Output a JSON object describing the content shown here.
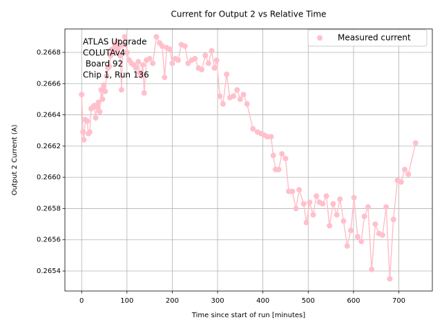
{
  "chart_data": {
    "type": "line",
    "title": "Current for Output 2 vs Relative Time",
    "xlabel": "Time since start of run [minutes]",
    "ylabel": "Output 2 Current (A)",
    "annotation": [
      "ATLAS Upgrade",
      "COLUTAv4",
      " Board 92",
      "Chip 1, Run 136"
    ],
    "legend": "upper right",
    "grid": true,
    "marker": "o",
    "x": [
      0,
      3,
      5,
      8,
      12,
      15,
      18,
      21,
      25,
      28,
      31,
      34,
      37,
      40,
      43,
      46,
      49,
      52,
      55,
      58,
      61,
      64,
      67,
      70,
      73,
      76,
      79,
      82,
      85,
      88,
      91,
      95,
      100,
      105,
      110,
      115,
      120,
      125,
      128,
      131,
      135,
      138,
      143,
      150,
      157,
      165,
      172,
      178,
      183,
      188,
      195,
      200,
      207,
      213,
      220,
      228,
      235,
      243,
      250,
      258,
      265,
      273,
      280,
      287,
      293,
      298,
      305,
      312,
      320,
      327,
      335,
      343,
      350,
      357,
      365,
      378,
      388,
      396,
      403,
      410,
      418,
      423,
      428,
      435,
      442,
      450,
      457,
      465,
      473,
      480,
      490,
      496,
      503,
      511,
      518,
      525,
      532,
      540,
      547,
      555,
      563,
      570,
      578,
      586,
      594,
      601,
      609,
      617,
      624,
      632,
      640,
      648,
      656,
      664,
      672,
      680,
      688,
      697,
      705,
      713,
      721,
      737
    ],
    "series": [
      {
        "name": "Measured current",
        "color": "#ffc0cb",
        "values": [
          0.26653,
          0.26629,
          0.26624,
          0.26637,
          0.26636,
          0.26628,
          0.26629,
          0.26644,
          0.26645,
          0.26646,
          0.26638,
          0.26645,
          0.26648,
          0.26642,
          0.26656,
          0.2665,
          0.26659,
          0.26655,
          0.26665,
          0.2667,
          0.26671,
          0.26678,
          0.26682,
          0.2668,
          0.26685,
          0.26682,
          0.26687,
          0.26683,
          0.26678,
          0.26656,
          0.26685,
          0.2669,
          0.2668,
          0.26675,
          0.26673,
          0.26672,
          0.2667,
          0.26674,
          0.26667,
          0.26665,
          0.26672,
          0.26654,
          0.26675,
          0.26676,
          0.26673,
          0.2669,
          0.26686,
          0.26684,
          0.26664,
          0.26683,
          0.26682,
          0.26673,
          0.26676,
          0.26675,
          0.26685,
          0.26684,
          0.26673,
          0.26675,
          0.26676,
          0.2667,
          0.26669,
          0.26678,
          0.26673,
          0.26681,
          0.2667,
          0.26675,
          0.26652,
          0.26647,
          0.26666,
          0.26651,
          0.26652,
          0.26656,
          0.2665,
          0.26653,
          0.26647,
          0.26631,
          0.26629,
          0.26628,
          0.26627,
          0.26626,
          0.26626,
          0.26614,
          0.26605,
          0.26605,
          0.26615,
          0.26612,
          0.26591,
          0.26591,
          0.2658,
          0.26592,
          0.26583,
          0.26571,
          0.26584,
          0.26576,
          0.26588,
          0.26584,
          0.26583,
          0.26588,
          0.26569,
          0.26583,
          0.26576,
          0.26586,
          0.26572,
          0.26556,
          0.26566,
          0.26587,
          0.26562,
          0.26559,
          0.26575,
          0.26581,
          0.26541,
          0.2657,
          0.26564,
          0.26563,
          0.26581,
          0.26535,
          0.26573,
          0.26598,
          0.26597,
          0.26605,
          0.26602,
          0.26622
        ]
      }
    ],
    "xlim": [
      -36.9,
      773.9
    ],
    "xticks": [
      0,
      100,
      200,
      300,
      400,
      500,
      600,
      700
    ],
    "ylim": [
      0.265272,
      0.26695
    ],
    "yticks": [
      0.2654,
      0.2656,
      0.2658,
      {
        "value": 0.266,
        "label": "0.2660"
      },
      0.2662,
      0.2664,
      0.2666,
      0.2668
    ]
  }
}
